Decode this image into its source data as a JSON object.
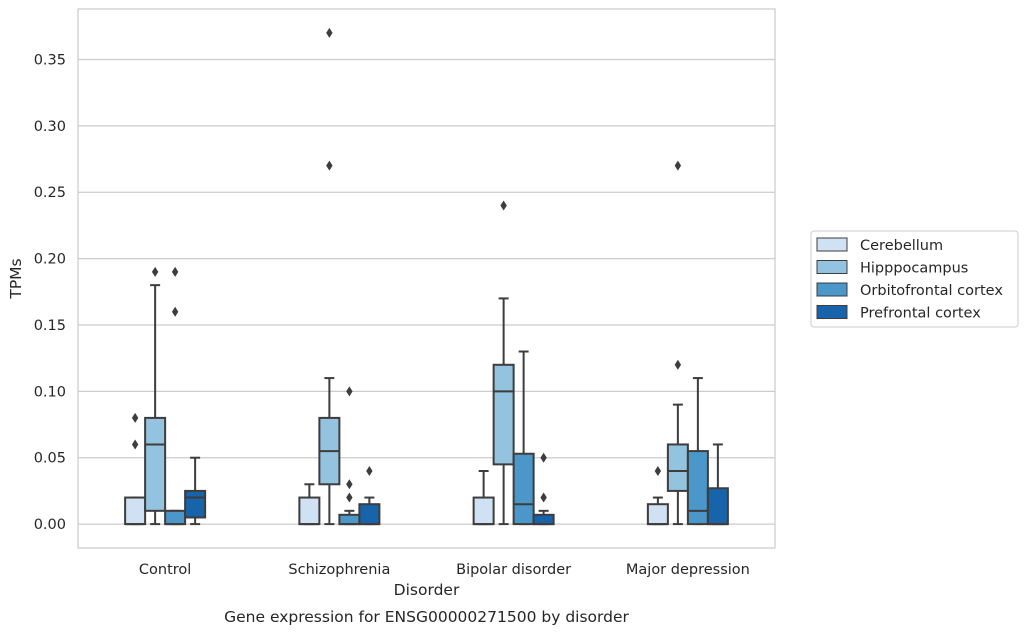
{
  "chart_data": {
    "type": "box",
    "title": "",
    "caption": "Gene expression for ENSG00000271500 by disorder",
    "xlabel": "Disorder",
    "ylabel": "TPMs",
    "ylim": [
      -0.018,
      0.388
    ],
    "yticks": [
      0.0,
      0.05,
      0.1,
      0.15,
      0.2,
      0.25,
      0.3,
      0.35
    ],
    "ytick_labels": [
      "0.00",
      "0.05",
      "0.10",
      "0.15",
      "0.20",
      "0.25",
      "0.30",
      "0.35"
    ],
    "grid": "horizontal",
    "legend_position": "right",
    "categories": [
      "Control",
      "Schizophrenia",
      "Bipolar disorder",
      "Major depression"
    ],
    "series": [
      {
        "name": "Cerebellum",
        "color": "#cfe1f2",
        "boxes": [
          {
            "whislo": 0.0,
            "q1": 0.0,
            "med": 0.0,
            "q3": 0.02,
            "whishi": 0.02,
            "fliers": [
              0.08,
              0.06
            ]
          },
          {
            "whislo": 0.0,
            "q1": 0.0,
            "med": 0.0,
            "q3": 0.02,
            "whishi": 0.03,
            "fliers": []
          },
          {
            "whislo": 0.0,
            "q1": 0.0,
            "med": 0.0,
            "q3": 0.02,
            "whishi": 0.04,
            "fliers": []
          },
          {
            "whislo": 0.0,
            "q1": 0.0,
            "med": 0.0,
            "q3": 0.015,
            "whishi": 0.02,
            "fliers": [
              0.04
            ]
          }
        ]
      },
      {
        "name": "Hipppocampus",
        "color": "#93c3df",
        "boxes": [
          {
            "whislo": 0.0,
            "q1": 0.01,
            "med": 0.06,
            "q3": 0.08,
            "whishi": 0.18,
            "fliers": [
              0.19
            ]
          },
          {
            "whislo": 0.0,
            "q1": 0.03,
            "med": 0.055,
            "q3": 0.08,
            "whishi": 0.11,
            "fliers": [
              0.27,
              0.37
            ]
          },
          {
            "whislo": 0.0,
            "q1": 0.045,
            "med": 0.1,
            "q3": 0.12,
            "whishi": 0.17,
            "fliers": [
              0.24
            ]
          },
          {
            "whislo": 0.0,
            "q1": 0.025,
            "med": 0.04,
            "q3": 0.06,
            "whishi": 0.09,
            "fliers": [
              0.12,
              0.27
            ]
          }
        ]
      },
      {
        "name": "Orbitofrontal cortex",
        "color": "#4b97c9",
        "boxes": [
          {
            "whislo": 0.0,
            "q1": 0.0,
            "med": 0.0,
            "q3": 0.01,
            "whishi": 0.01,
            "fliers": [
              0.16,
              0.19
            ]
          },
          {
            "whislo": 0.0,
            "q1": 0.0,
            "med": 0.0,
            "q3": 0.007,
            "whishi": 0.01,
            "fliers": [
              0.02,
              0.03,
              0.1
            ]
          },
          {
            "whislo": 0.0,
            "q1": 0.0,
            "med": 0.015,
            "q3": 0.053,
            "whishi": 0.13,
            "fliers": []
          },
          {
            "whislo": 0.0,
            "q1": 0.0,
            "med": 0.01,
            "q3": 0.055,
            "whishi": 0.11,
            "fliers": []
          }
        ]
      },
      {
        "name": "Prefrontal cortex",
        "color": "#1764ab",
        "boxes": [
          {
            "whislo": 0.0,
            "q1": 0.005,
            "med": 0.02,
            "q3": 0.025,
            "whishi": 0.05,
            "fliers": []
          },
          {
            "whislo": 0.0,
            "q1": 0.0,
            "med": 0.0,
            "q3": 0.015,
            "whishi": 0.02,
            "fliers": [
              0.04
            ]
          },
          {
            "whislo": 0.0,
            "q1": 0.0,
            "med": 0.0,
            "q3": 0.007,
            "whishi": 0.01,
            "fliers": [
              0.02,
              0.05
            ]
          },
          {
            "whislo": 0.0,
            "q1": 0.0,
            "med": 0.0,
            "q3": 0.027,
            "whishi": 0.06,
            "fliers": []
          }
        ]
      }
    ]
  }
}
